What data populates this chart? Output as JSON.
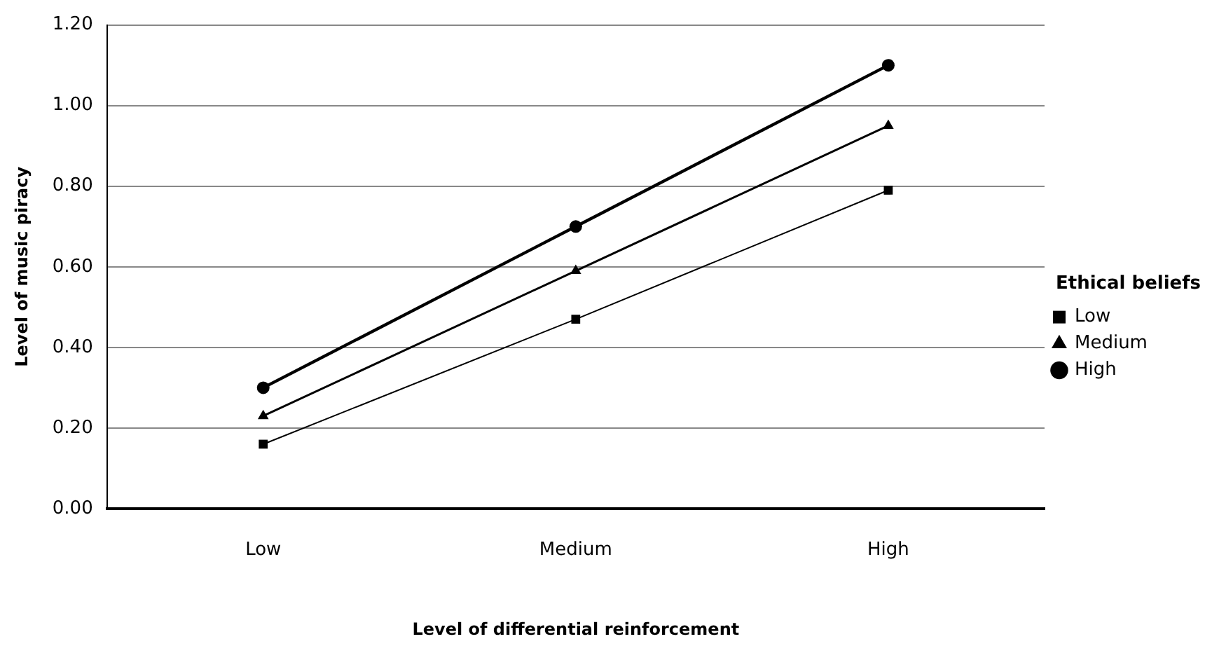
{
  "chart_data": {
    "type": "line",
    "xlabel": "Level of differential reinforcement",
    "ylabel": "Level of music piracy",
    "legend_title": "Ethical beliefs",
    "categories": [
      "Low",
      "Medium",
      "High"
    ],
    "series": [
      {
        "name": "Low",
        "color": "#000000",
        "marker": "square",
        "values": [
          0.16,
          0.47,
          0.79
        ]
      },
      {
        "name": "Medium",
        "color": "#000000",
        "marker": "triangle",
        "values": [
          0.23,
          0.59,
          0.95
        ]
      },
      {
        "name": "High",
        "color": "#000000",
        "marker": "circle",
        "values": [
          0.3,
          0.7,
          1.1
        ]
      }
    ],
    "ylim": [
      0,
      1.2
    ],
    "yticks": [
      {
        "value": 0,
        "label": "0.00"
      },
      {
        "value": 0.2,
        "label": "0.20"
      },
      {
        "value": 0.4,
        "label": "0.40"
      },
      {
        "value": 0.6,
        "label": "0.60"
      },
      {
        "value": 0.8,
        "label": "0.80"
      },
      {
        "value": 1,
        "label": "1.00"
      },
      {
        "value": 1.2,
        "label": "1.20"
      }
    ],
    "grid": "y",
    "legend": "right",
    "line_style": "solid"
  }
}
